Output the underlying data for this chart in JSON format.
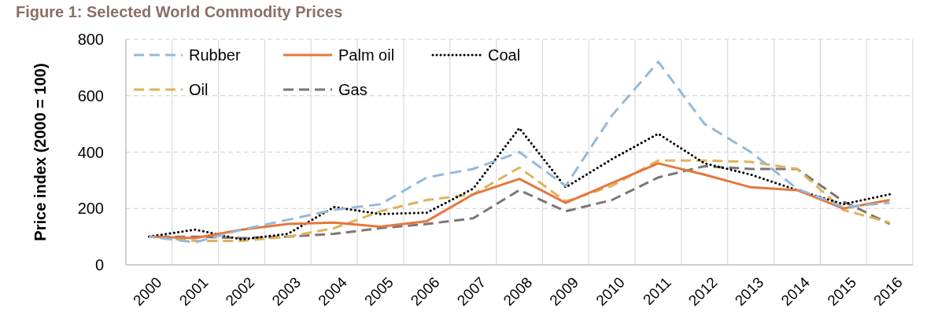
{
  "chart_data": {
    "type": "line",
    "title": "Figure 1: Selected World Commodity Prices",
    "ylabel": "Price index (2000 = 100)",
    "categories": [
      "2000",
      "2001",
      "2002",
      "2003",
      "2004",
      "2005",
      "2006",
      "2007",
      "2008",
      "2009",
      "2010",
      "2011",
      "2012",
      "2013",
      "2014",
      "2015",
      "2016"
    ],
    "ylim": [
      0,
      800
    ],
    "yticks": [
      0,
      200,
      400,
      600,
      800
    ],
    "grid": true,
    "legend": "top left",
    "series": [
      {
        "name": "Rubber",
        "color": "#95b9d9",
        "line_style": "dashed",
        "values": [
          100,
          80,
          125,
          160,
          195,
          215,
          310,
          340,
          400,
          280,
          530,
          720,
          500,
          400,
          270,
          205,
          220
        ]
      },
      {
        "name": "Palm oil",
        "color": "#e5773d",
        "line_style": "solid",
        "values": [
          100,
          95,
          125,
          145,
          150,
          135,
          155,
          250,
          305,
          220,
          290,
          360,
          320,
          275,
          265,
          200,
          230
        ]
      },
      {
        "name": "Coal",
        "color": "#000000",
        "line_style": "dotted",
        "values": [
          100,
          125,
          90,
          110,
          205,
          180,
          185,
          270,
          485,
          275,
          375,
          465,
          360,
          320,
          265,
          215,
          250
        ]
      },
      {
        "name": "Oil",
        "color": "#dfb35a",
        "line_style": "dashed",
        "values": [
          100,
          85,
          85,
          100,
          130,
          190,
          230,
          250,
          345,
          225,
          280,
          370,
          370,
          365,
          340,
          195,
          150
        ]
      },
      {
        "name": "Gas",
        "color": "#7f7575",
        "line_style": "dashed",
        "values": [
          100,
          100,
          95,
          100,
          110,
          130,
          145,
          165,
          265,
          190,
          230,
          310,
          350,
          340,
          340,
          225,
          145
        ]
      }
    ]
  }
}
